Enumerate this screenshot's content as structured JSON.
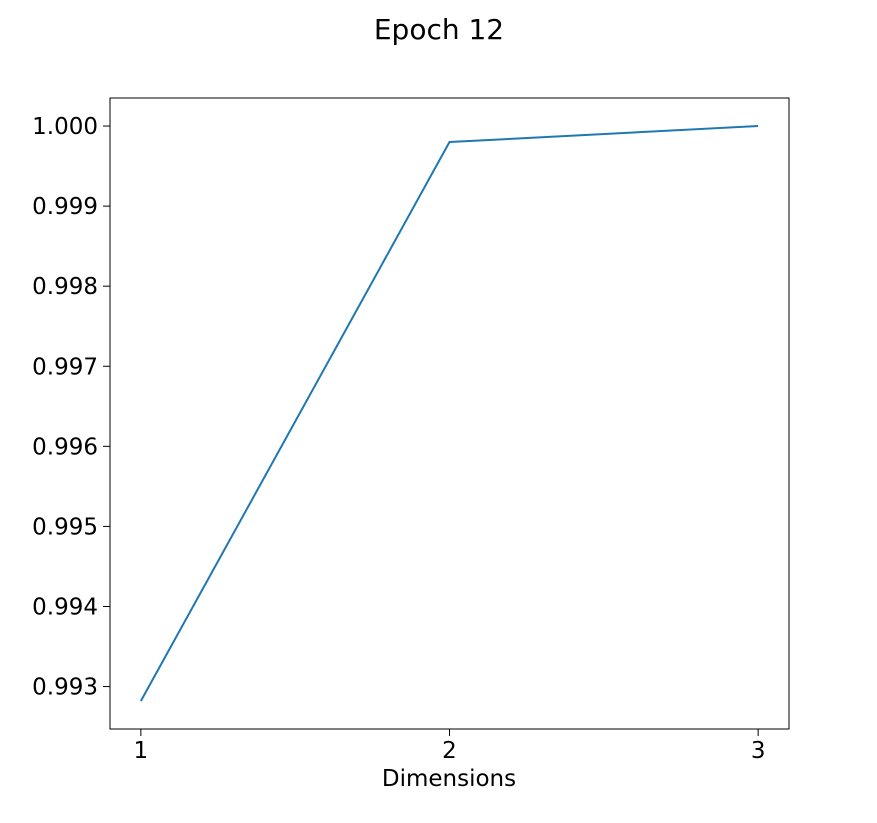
{
  "chart_data": {
    "type": "line",
    "title": "Epoch 12",
    "xlabel": "Dimensions",
    "ylabel": "",
    "x": [
      1,
      2,
      3
    ],
    "series": [
      {
        "values": [
          0.99282,
          0.9998,
          1.0
        ],
        "color": "#1f77b4"
      }
    ],
    "xticks": [
      1,
      2,
      3
    ],
    "xtick_labels": [
      "1",
      "2",
      "3"
    ],
    "yticks": [
      0.993,
      0.994,
      0.995,
      0.996,
      0.997,
      0.998,
      0.999,
      1.0
    ],
    "ytick_labels": [
      "0.993",
      "0.994",
      "0.995",
      "0.996",
      "0.997",
      "0.998",
      "0.999",
      "1.000"
    ],
    "xlim": [
      0.9,
      3.1
    ],
    "ylim": [
      0.99247,
      1.00035
    ],
    "grid": false,
    "legend": "none"
  }
}
